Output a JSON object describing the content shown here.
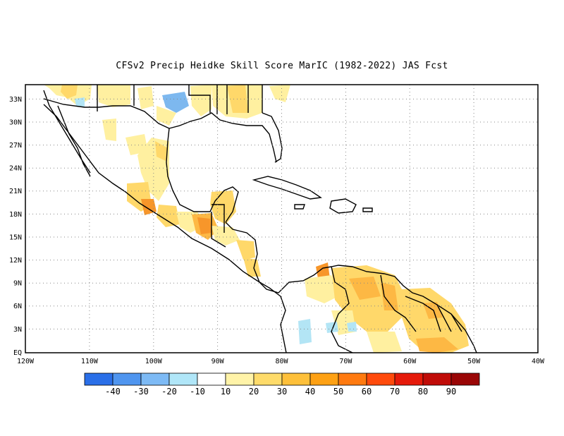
{
  "title": "CFSv2 Precip Heidke Skill Score MarIC (1982-2022) JAS Fcst",
  "lat_labels": [
    "33N",
    "30N",
    "27N",
    "24N",
    "21N",
    "18N",
    "15N",
    "12N",
    "9N",
    "6N",
    "3N",
    "EQ"
  ],
  "lon_labels": [
    "120W",
    "110W",
    "100W",
    "90W",
    "80W",
    "70W",
    "60W",
    "50W",
    "40W"
  ],
  "colorbar": {
    "colors": [
      "#2a6fe8",
      "#4f95ef",
      "#7dbaf5",
      "#b0e6f8",
      "#ffffff",
      "#fff3a8",
      "#fedb6a",
      "#fec03a",
      "#fea114",
      "#ff7a10",
      "#ff4a0c",
      "#e51a0a",
      "#c00c08",
      "#9a0606"
    ],
    "labels": [
      "-40",
      "-30",
      "-20",
      "-10",
      "10",
      "20",
      "30",
      "40",
      "50",
      "60",
      "70",
      "80",
      "90"
    ]
  },
  "map_colors": {
    "light_yellow": "#fff0a0",
    "yellow": "#ffd86a",
    "orange": "#fdb844",
    "dark_orange": "#f7962a",
    "light_blue": "#b3e5f5",
    "blue": "#7db8ef",
    "grid": "#888888",
    "coast": "#000000"
  }
}
